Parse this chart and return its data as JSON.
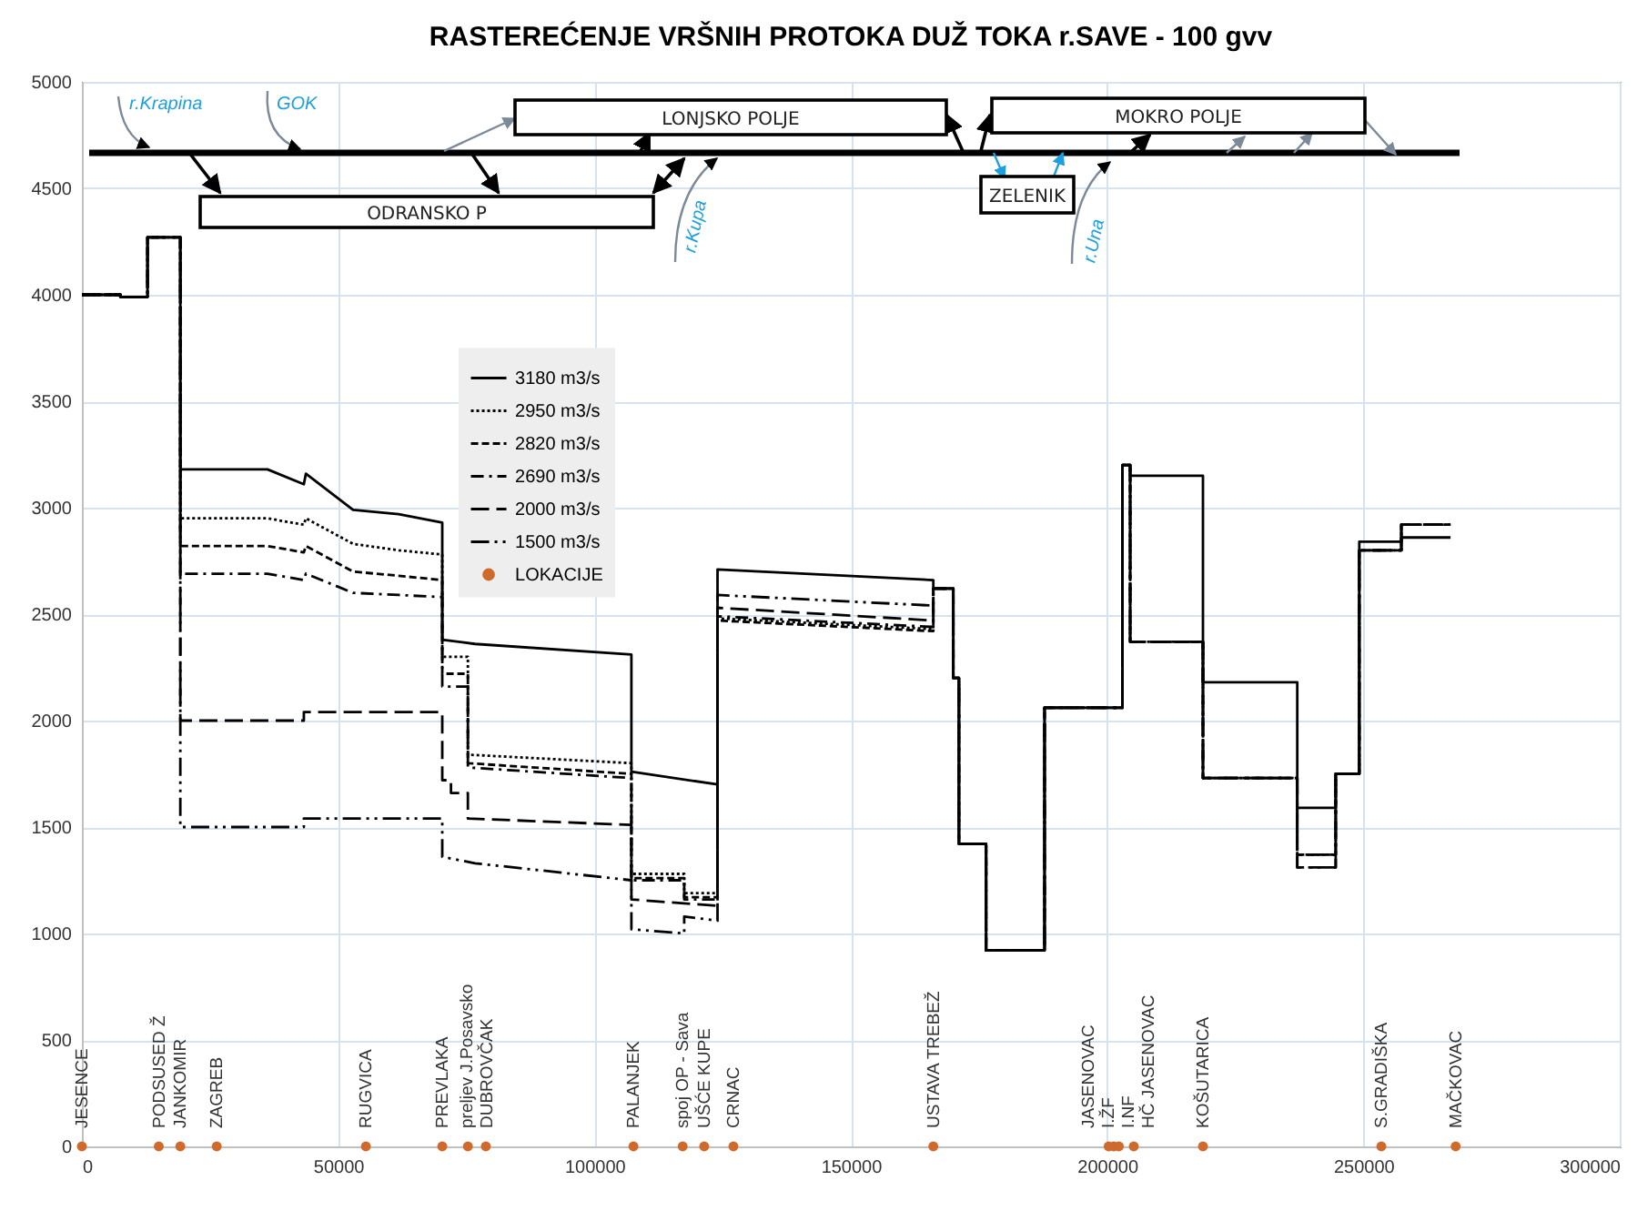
{
  "chart_data": {
    "type": "line",
    "title": "RASTEREĆENJE VRŠNIH PROTOKA DUŽ TOKA r.SAVE - 100 gvv",
    "xlim": [
      0,
      300000
    ],
    "xticks": [
      0,
      50000,
      100000,
      150000,
      200000,
      250000,
      300000
    ],
    "ylim": [
      0,
      5000
    ],
    "yticks": [
      0,
      500,
      1000,
      1500,
      2000,
      2500,
      3000,
      3500,
      4000,
      4500,
      5000
    ],
    "grid": true,
    "legend": "left",
    "series": [
      {
        "name": "3180 m3/s",
        "color": "#000000",
        "line_style": "solid",
        "x": [
          0,
          7500,
          7500,
          12800,
          12800,
          19200,
          19200,
          36200,
          43300,
          43700,
          52900,
          61800,
          70300,
          70300,
          76700,
          107200,
          107200,
          124000,
          124000,
          166100,
          166100,
          170000,
          170000,
          171100,
          171100,
          176400,
          176400,
          187800,
          187800,
          203000,
          203000,
          204500,
          204500,
          218700,
          218700,
          237100,
          237100,
          244600,
          244600,
          249200,
          249200,
          257400,
          257400,
          267000
        ],
        "values": [
          4000,
          4000,
          3990,
          3990,
          4270,
          4270,
          3180,
          3180,
          3110,
          3160,
          2990,
          2970,
          2930,
          2380,
          2360,
          2310,
          1760,
          1700,
          2710,
          2660,
          2620,
          2620,
          2200,
          2200,
          1420,
          1420,
          920,
          920,
          2060,
          2060,
          3200,
          3200,
          3150,
          3150,
          2180,
          2180,
          1590,
          1590,
          1750,
          1750,
          2840,
          2840,
          2860,
          2860
        ]
      },
      {
        "name": "2950 m3/s",
        "color": "#000000",
        "line_style": "dotted",
        "x": [
          0,
          7500,
          7500,
          12800,
          12800,
          19200,
          19200,
          36200,
          43300,
          43700,
          52900,
          61800,
          70300,
          70300,
          75300,
          75300,
          107200,
          107200,
          117500,
          117500,
          124000,
          124000,
          166100,
          166100,
          170000,
          170000,
          171100,
          171100,
          176400,
          176400,
          187800,
          187800,
          203000,
          203000,
          204500,
          204500,
          218700,
          218700,
          237100,
          237100,
          244600,
          244600,
          249200,
          249200,
          257400,
          257400,
          267000
        ],
        "values": [
          4000,
          4000,
          3990,
          3990,
          4270,
          4270,
          2950,
          2950,
          2920,
          2950,
          2830,
          2800,
          2780,
          2300,
          2300,
          1840,
          1800,
          1280,
          1280,
          1190,
          1190,
          2480,
          2430,
          2620,
          2620,
          2200,
          2200,
          1420,
          1420,
          920,
          920,
          2060,
          2060,
          3200,
          3200,
          2370,
          2370,
          1730,
          1730,
          1370,
          1370,
          1750,
          1750,
          2800,
          2800,
          2920,
          2920
        ]
      },
      {
        "name": "2820 m3/s",
        "color": "#000000",
        "line_style": "dashed",
        "x": [
          0,
          7500,
          7500,
          12800,
          12800,
          19200,
          19200,
          36200,
          43300,
          43700,
          52900,
          61800,
          70300,
          70300,
          75300,
          75300,
          107200,
          107200,
          117500,
          117500,
          124000,
          124000,
          166100,
          166100,
          170000,
          170000,
          171100,
          171100,
          176400,
          176400,
          187800,
          187800,
          203000,
          203000,
          204500,
          204500,
          218700,
          218700,
          237100,
          237100,
          244600,
          244600,
          249200,
          249200,
          257400,
          257400,
          267000
        ],
        "values": [
          4000,
          4000,
          3990,
          3990,
          4270,
          4270,
          2820,
          2820,
          2790,
          2820,
          2700,
          2680,
          2660,
          2220,
          2220,
          1800,
          1750,
          1260,
          1260,
          1170,
          1170,
          2470,
          2420,
          2620,
          2620,
          2200,
          2200,
          1420,
          1420,
          920,
          920,
          2060,
          2060,
          3200,
          3200,
          2370,
          2370,
          1730,
          1730,
          1370,
          1370,
          1750,
          1750,
          2800,
          2800,
          2920,
          2920
        ]
      },
      {
        "name": "2690 m3/s",
        "color": "#000000",
        "line_style": "dashdot",
        "x": [
          0,
          7500,
          7500,
          12800,
          12800,
          19200,
          19200,
          36200,
          43300,
          43700,
          52900,
          61800,
          70300,
          70300,
          75300,
          75300,
          107200,
          107200,
          117500,
          117500,
          124000,
          124000,
          166100,
          166100,
          170000,
          170000,
          171100,
          171100,
          176400,
          176400,
          187800,
          187800,
          203000,
          203000,
          204500,
          204500,
          218700,
          218700,
          237100,
          237100,
          244600,
          244600,
          249200,
          249200,
          257400,
          257400,
          267000
        ],
        "values": [
          4000,
          4000,
          3990,
          3990,
          4270,
          4270,
          2690,
          2690,
          2660,
          2690,
          2600,
          2590,
          2580,
          2160,
          2160,
          1780,
          1730,
          1250,
          1250,
          1160,
          1160,
          2490,
          2440,
          2620,
          2620,
          2200,
          2200,
          1420,
          1420,
          920,
          920,
          2060,
          2060,
          3200,
          3200,
          2370,
          2370,
          1730,
          1730,
          1370,
          1370,
          1750,
          1750,
          2800,
          2800,
          2920,
          2920
        ]
      },
      {
        "name": "2000 m3/s",
        "color": "#000000",
        "line_style": "longdash",
        "x": [
          0,
          7500,
          7500,
          12800,
          12800,
          19200,
          19200,
          43300,
          43300,
          70300,
          70300,
          72000,
          72000,
          75300,
          75300,
          107200,
          107200,
          124000,
          124000,
          166100,
          166100,
          170000,
          170000,
          171100,
          171100,
          176400,
          176400,
          187800,
          187800,
          203000,
          203000,
          204500,
          204500,
          218700,
          218700,
          237100,
          237100,
          244600,
          244600,
          249200,
          249200,
          257400,
          257400,
          267000
        ],
        "values": [
          4000,
          4000,
          3990,
          3990,
          4270,
          4270,
          2000,
          2000,
          2040,
          2040,
          1720,
          1720,
          1660,
          1660,
          1540,
          1510,
          1160,
          1130,
          2530,
          2470,
          2620,
          2620,
          2200,
          2200,
          1420,
          1420,
          920,
          920,
          2060,
          2060,
          3200,
          3200,
          2370,
          2370,
          1730,
          1730,
          1310,
          1310,
          1750,
          1750,
          2800,
          2800,
          2920,
          2920
        ]
      },
      {
        "name": "1500 m3/s",
        "color": "#000000",
        "line_style": "dashdotdot",
        "x": [
          0,
          7500,
          7500,
          12800,
          12800,
          19200,
          19200,
          43300,
          43300,
          70300,
          70300,
          76700,
          107200,
          107200,
          117500,
          117500,
          124000,
          124000,
          166100,
          166100,
          170000,
          170000,
          171100,
          171100,
          176400,
          176400,
          187800,
          187800,
          203000,
          203000,
          204500,
          204500,
          218700,
          218700,
          237100,
          237100,
          244600,
          244600,
          249200,
          249200,
          257400,
          257400,
          267000
        ],
        "values": [
          4000,
          4000,
          3990,
          3990,
          4270,
          4270,
          1500,
          1500,
          1540,
          1540,
          1360,
          1330,
          1250,
          1020,
          1000,
          1080,
          1060,
          2590,
          2540,
          2620,
          2620,
          2200,
          2200,
          1420,
          1420,
          920,
          920,
          2060,
          2060,
          3200,
          3200,
          2370,
          2370,
          1730,
          1730,
          1310,
          1310,
          1750,
          1750,
          2800,
          2800,
          2920,
          2920
        ]
      },
      {
        "name": "LOKACIJE",
        "type": "scatter",
        "marker": "circle",
        "color": "#d0692c",
        "x": [
          0,
          15000,
          19200,
          26300,
          55400,
          70300,
          75300,
          78800,
          107600,
          117200,
          121400,
          127100,
          166100,
          200300,
          201300,
          202300,
          205200,
          218700,
          253500,
          268000
        ],
        "values": [
          0,
          0,
          0,
          0,
          0,
          0,
          0,
          0,
          0,
          0,
          0,
          0,
          0,
          0,
          0,
          0,
          0,
          0,
          0,
          0
        ]
      }
    ],
    "annotations": [
      "r.Krapina",
      "GOK",
      "LONJSKO POLJE",
      "ODRANSKO P",
      "ZELENIK",
      "MOKRO POLJE",
      "r.Kupa",
      "r.Una",
      {
        "text": "JESENCE",
        "x": 0,
        "y": 0
      },
      {
        "text": "PODSUSED Ž",
        "x": 15000,
        "y": 0
      },
      {
        "text": "JANKOMIR",
        "x": 19200,
        "y": 0
      },
      {
        "text": "ZAGREB",
        "x": 26300,
        "y": 0
      },
      {
        "text": "RUGVICA",
        "x": 55400,
        "y": 0
      },
      {
        "text": "PREVLAKA",
        "x": 70300,
        "y": 0
      },
      {
        "text": "preljev J.Posavsko",
        "x": 75300,
        "y": 0
      },
      {
        "text": "DUBROVČAK",
        "x": 78800,
        "y": 0
      },
      {
        "text": "PALANJEK",
        "x": 107600,
        "y": 0
      },
      {
        "text": "spoj OP - Sava",
        "x": 117200,
        "y": 0
      },
      {
        "text": "UŠĆE KUPE",
        "x": 121400,
        "y": 0
      },
      {
        "text": "CRNAC",
        "x": 127100,
        "y": 0
      },
      {
        "text": "USTAVA TREBEŽ",
        "x": 166100,
        "y": 0
      },
      {
        "text": "JASENOVAC",
        "x": 200300,
        "y": 0
      },
      {
        "text": "I.ŽF",
        "x": 201300,
        "y": 0
      },
      {
        "text": "I.NF",
        "x": 202300,
        "y": 0
      },
      {
        "text": "HČ JASENOVAC",
        "x": 205200,
        "y": 0
      },
      {
        "text": "KOŠUTARICA",
        "x": 218700,
        "y": 0
      },
      {
        "text": "S.GRADIŠKA",
        "x": 253500,
        "y": 0
      },
      {
        "text": "MAČKOVAC",
        "x": 268000,
        "y": 0
      }
    ]
  }
}
